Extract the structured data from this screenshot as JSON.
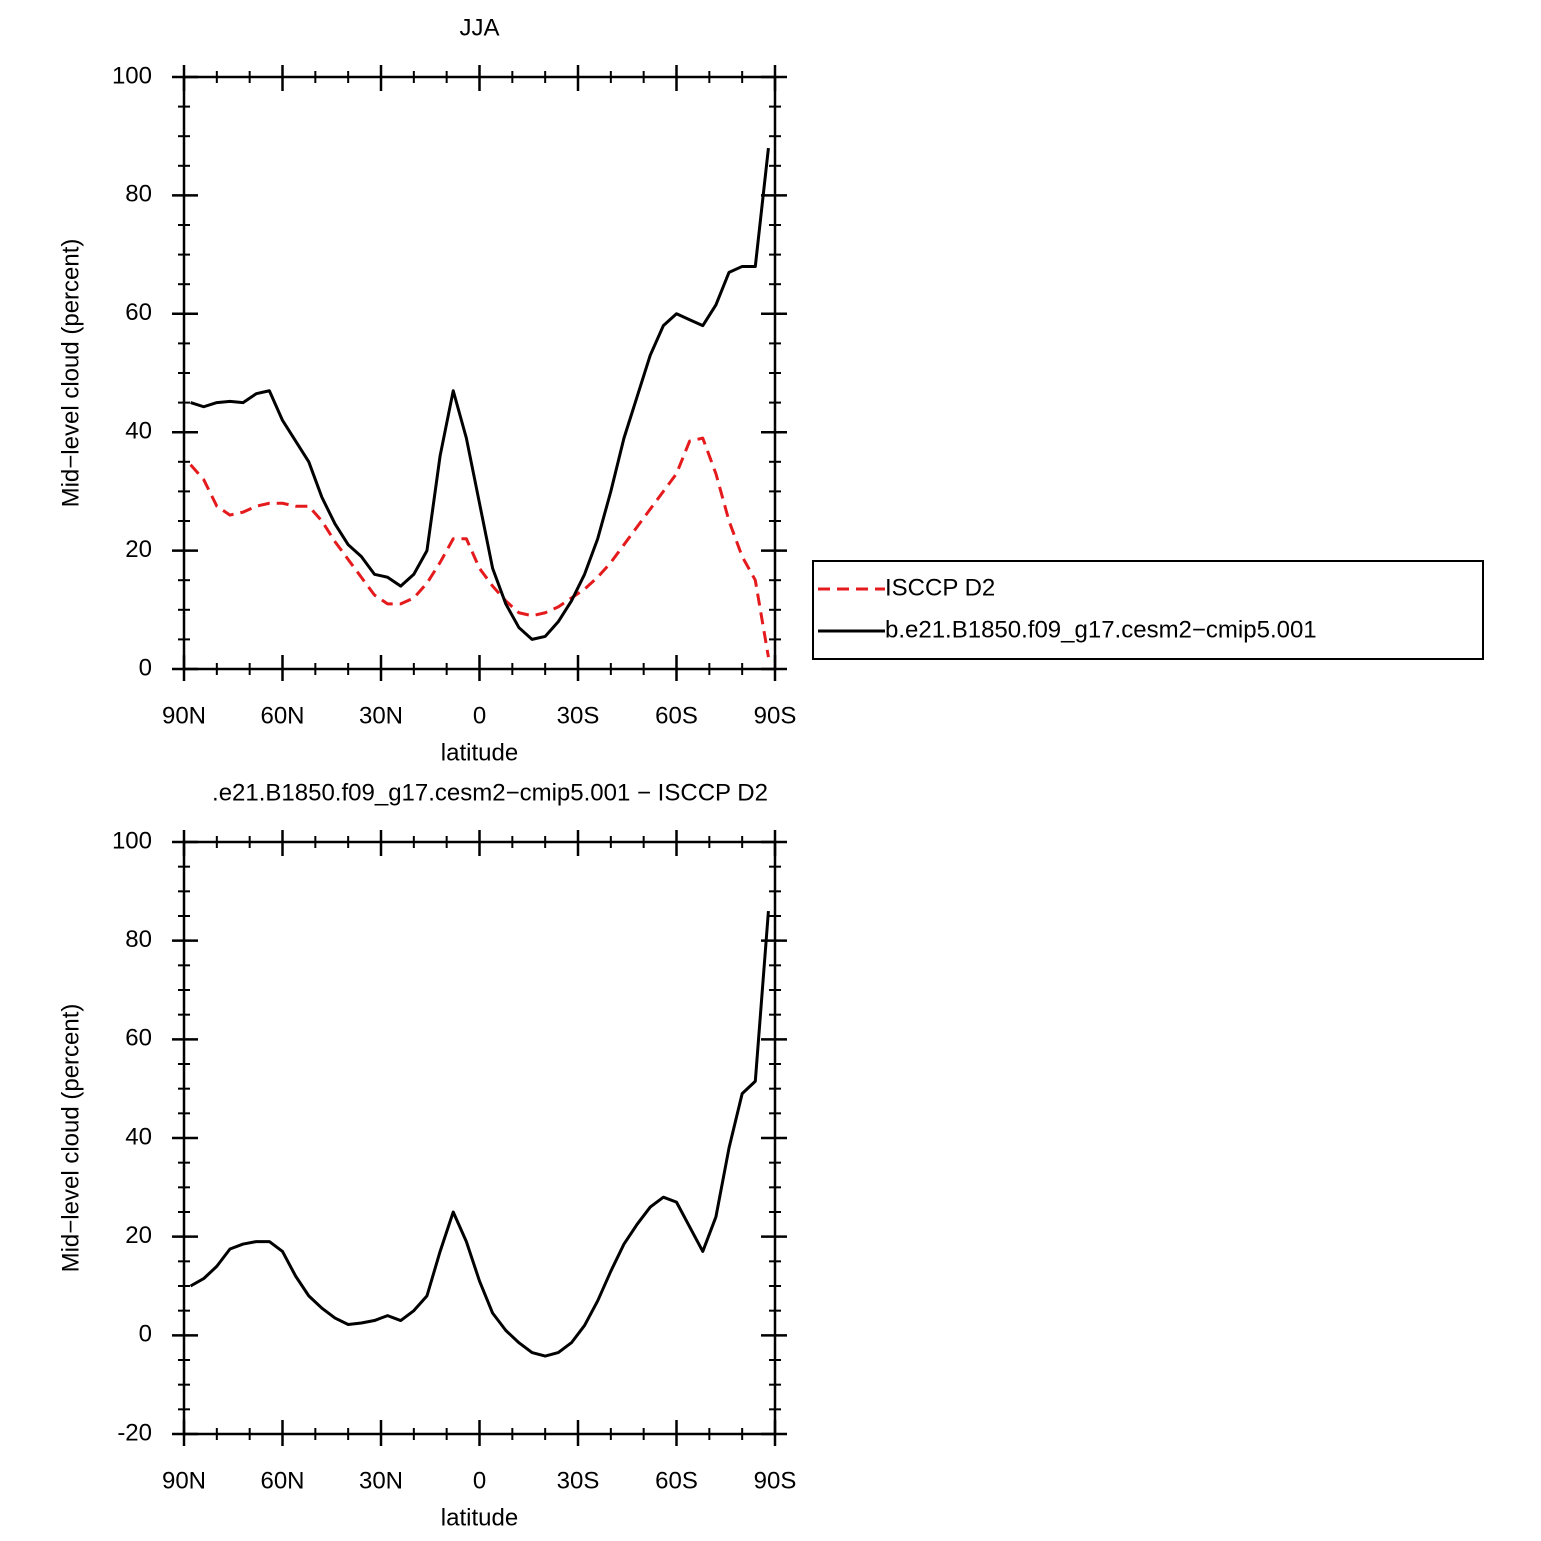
{
  "chart_data": [
    {
      "type": "line",
      "title": "JJA",
      "xlabel": "latitude",
      "ylabel": "Mid−level cloud (percent)",
      "x": [
        88,
        84,
        80,
        76,
        72,
        68,
        64,
        60,
        56,
        52,
        48,
        44,
        40,
        36,
        32,
        28,
        24,
        20,
        16,
        12,
        8,
        4,
        0,
        -4,
        -8,
        -12,
        -16,
        -20,
        -24,
        -28,
        -32,
        -36,
        -40,
        -44,
        -48,
        -52,
        -56,
        -60,
        -64,
        -68,
        -72,
        -76,
        -80,
        -84,
        -88
      ],
      "series": [
        {
          "name": "ISCCP D2",
          "color": "#e41a1c",
          "dash": true,
          "values": [
            34.5,
            32,
            27.5,
            26,
            26.5,
            27.5,
            28,
            28,
            27.5,
            27.5,
            25,
            21.5,
            18.5,
            15.5,
            12.5,
            11,
            11,
            12,
            14.5,
            18,
            22,
            22,
            17,
            14,
            11.5,
            9.5,
            9,
            9.5,
            10.5,
            12,
            13.5,
            15.5,
            18,
            21,
            24,
            27,
            30,
            33,
            38.5,
            39,
            33,
            25,
            19,
            15,
            2
          ]
        },
        {
          "name": "b.e21.B1850.f09_g17.cesm2−cmip5.001",
          "color": "#000000",
          "dash": false,
          "values": [
            45,
            44.3,
            45,
            45.2,
            45,
            46.5,
            47,
            42,
            38.5,
            35,
            29,
            24.5,
            21,
            19,
            16,
            15.5,
            14,
            16,
            20,
            36,
            47,
            39,
            28,
            17,
            11,
            7,
            5,
            5.5,
            8,
            11.5,
            16,
            22,
            30,
            39,
            46,
            53,
            58,
            60,
            59,
            58,
            61.5,
            67,
            68,
            68,
            88
          ]
        }
      ],
      "xlim": [
        90,
        -90
      ],
      "xticks": [
        {
          "value": 90,
          "label": "90N"
        },
        {
          "value": 60,
          "label": "60N"
        },
        {
          "value": 30,
          "label": "30N"
        },
        0,
        {
          "value": -30,
          "label": "30S"
        },
        {
          "value": -60,
          "label": "60S"
        },
        {
          "value": -90,
          "label": "90S"
        }
      ],
      "xminorticks": [
        80,
        70,
        50,
        40,
        20,
        10,
        -10,
        -20,
        -40,
        -50,
        -70,
        -80
      ],
      "ylim": [
        0,
        100
      ],
      "yticks": [
        0,
        20,
        40,
        60,
        80,
        100
      ],
      "yminorticks": [
        5,
        10,
        15,
        25,
        30,
        35,
        45,
        50,
        55,
        65,
        70,
        75,
        85,
        90,
        95
      ],
      "legend": "right"
    },
    {
      "type": "line",
      "title": ".e21.B1850.f09_g17.cesm2−cmip5.001 − ISCCP D2",
      "xlabel": "latitude",
      "ylabel": "Mid−level cloud (percent)",
      "x": [
        88,
        84,
        80,
        76,
        72,
        68,
        64,
        60,
        56,
        52,
        48,
        44,
        40,
        36,
        32,
        28,
        24,
        20,
        16,
        12,
        8,
        4,
        0,
        -4,
        -8,
        -12,
        -16,
        -20,
        -24,
        -28,
        -32,
        -36,
        -40,
        -44,
        -48,
        -52,
        -56,
        -60,
        -64,
        -68,
        -72,
        -76,
        -80,
        -84,
        -88
      ],
      "series": [
        {
          "color": "#000000",
          "dash": false,
          "values": [
            10,
            11.5,
            14,
            17.5,
            18.5,
            19,
            19,
            17,
            12,
            8,
            5.5,
            3.5,
            2.2,
            2.5,
            3,
            4,
            3,
            5,
            8,
            17,
            25,
            19,
            11,
            4.5,
            1,
            -1.5,
            -3.5,
            -4.2,
            -3.5,
            -1.5,
            2,
            7,
            13,
            18.5,
            22.5,
            26,
            28,
            27,
            22,
            17,
            24,
            38,
            49,
            51.5,
            86
          ]
        }
      ],
      "xlim": [
        90,
        -90
      ],
      "xticks": [
        {
          "value": 90,
          "label": "90N"
        },
        {
          "value": 60,
          "label": "60N"
        },
        {
          "value": 30,
          "label": "30N"
        },
        0,
        {
          "value": -30,
          "label": "30S"
        },
        {
          "value": -60,
          "label": "60S"
        },
        {
          "value": -90,
          "label": "90S"
        }
      ],
      "xminorticks": [
        80,
        70,
        50,
        40,
        20,
        10,
        -10,
        -20,
        -40,
        -50,
        -70,
        -80
      ],
      "ylim": [
        -20,
        100
      ],
      "yticks": [
        -20,
        0,
        20,
        40,
        60,
        80,
        100
      ],
      "yminorticks": [
        -15,
        -10,
        -5,
        5,
        10,
        15,
        25,
        30,
        35,
        45,
        50,
        55,
        65,
        70,
        75,
        85,
        90,
        95
      ]
    }
  ]
}
